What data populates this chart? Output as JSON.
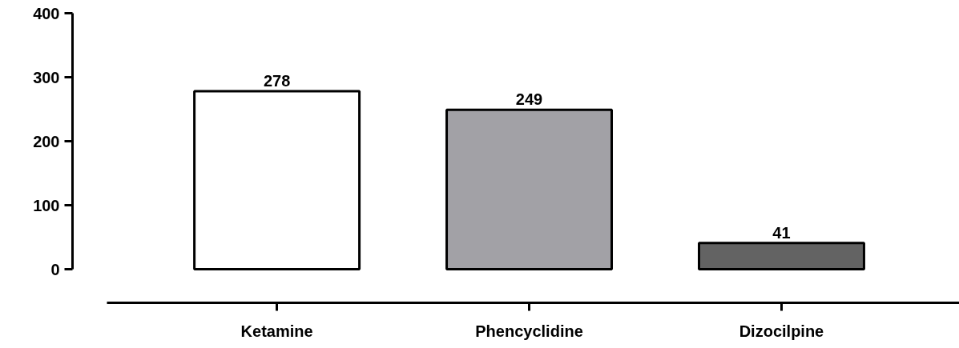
{
  "chart_data": {
    "type": "bar",
    "categories": [
      "Ketamine",
      "Phencyclidine",
      "Dizocilpine"
    ],
    "values": [
      278,
      249,
      41
    ],
    "colors": [
      "#ffffff",
      "#a2a1a6",
      "#636363"
    ],
    "ylim": [
      0,
      400
    ],
    "yticks": [
      0,
      100,
      200,
      300,
      400
    ],
    "data_labels": true,
    "grid": false
  }
}
